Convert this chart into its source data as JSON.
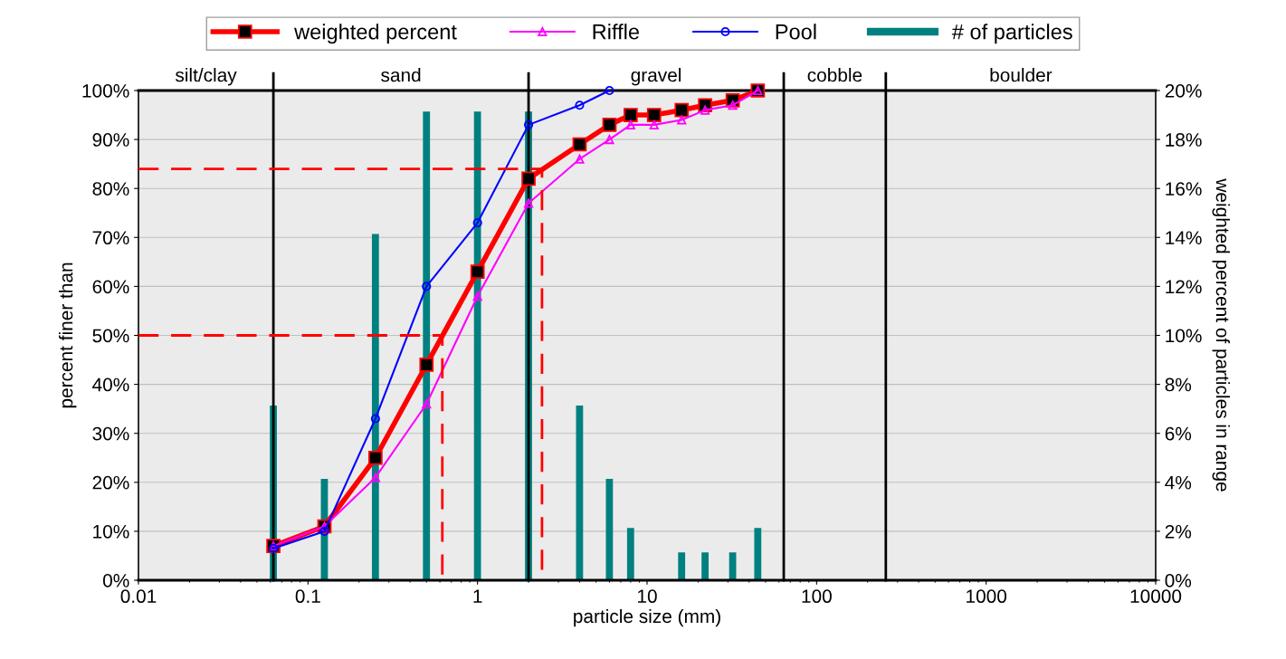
{
  "chart_data": {
    "type": "line",
    "xlabel": "particle size (mm)",
    "ylabel": "percent finer than",
    "y2label": "weighted percent of particles in range",
    "log": "x",
    "grid": true,
    "legend": "top",
    "xlim": [
      0.01,
      10000
    ],
    "xticks": [
      0.01,
      0.1,
      1,
      10,
      100,
      1000,
      10000
    ],
    "ylim": [
      0,
      100
    ],
    "yticks": [
      {
        "value": 0,
        "label": "0%"
      },
      {
        "value": 10,
        "label": "10%"
      },
      {
        "value": 20,
        "label": "20%"
      },
      {
        "value": 30,
        "label": "30%"
      },
      {
        "value": 40,
        "label": "40%"
      },
      {
        "value": 50,
        "label": "50%"
      },
      {
        "value": 60,
        "label": "60%"
      },
      {
        "value": 70,
        "label": "70%"
      },
      {
        "value": 80,
        "label": "80%"
      },
      {
        "value": 90,
        "label": "90%"
      },
      {
        "value": 100,
        "label": "100%"
      }
    ],
    "y2lim": [
      0,
      20
    ],
    "y2ticks": [
      {
        "value": 0,
        "label": "0%"
      },
      {
        "value": 2,
        "label": "2%"
      },
      {
        "value": 4,
        "label": "4%"
      },
      {
        "value": 6,
        "label": "6%"
      },
      {
        "value": 8,
        "label": "8%"
      },
      {
        "value": 10,
        "label": "10%"
      },
      {
        "value": 12,
        "label": "12%"
      },
      {
        "value": 14,
        "label": "14%"
      },
      {
        "value": 16,
        "label": "16%"
      },
      {
        "value": 18,
        "label": "18%"
      },
      {
        "value": 20,
        "label": "20%"
      }
    ],
    "series": [
      {
        "name": "weighted percent",
        "color": "#ff0000",
        "marker": "square",
        "x": [
          0.0625,
          0.125,
          0.25,
          0.5,
          1,
          2,
          4,
          6,
          8,
          11,
          16,
          22,
          32,
          45
        ],
        "values": [
          7,
          11,
          25,
          44,
          63,
          82,
          89,
          93,
          95,
          95,
          96,
          97,
          98,
          100
        ]
      },
      {
        "name": "Riffle",
        "color": "#ff00ff",
        "marker": "triangle",
        "x": [
          0.0625,
          0.125,
          0.25,
          0.5,
          1,
          2,
          4,
          6,
          8,
          11,
          16,
          22,
          32,
          45
        ],
        "values": [
          7,
          11,
          21,
          36,
          58,
          77,
          86,
          90,
          93,
          93,
          94,
          96,
          97,
          100
        ]
      },
      {
        "name": "Pool",
        "color": "#0000ff",
        "marker": "circle",
        "x": [
          0.0625,
          0.125,
          0.25,
          0.5,
          1,
          2,
          4,
          6
        ],
        "values": [
          6.5,
          10,
          33,
          60,
          73,
          93,
          97,
          100
        ]
      },
      {
        "name": "# of particles",
        "type": "bar",
        "axis": "y2",
        "color": "#008080",
        "x": [
          0.0625,
          0.125,
          0.25,
          0.5,
          1,
          2,
          4,
          6,
          8,
          11,
          16,
          22,
          32,
          45,
          64,
          90,
          128,
          180,
          256,
          362,
          512,
          1024,
          2048
        ],
        "values": [
          7.1,
          4.1,
          14.1,
          19.1,
          19.1,
          19.1,
          7.1,
          4.1,
          2.1,
          0,
          1.1,
          1.1,
          1.1,
          2.1,
          0,
          0,
          0,
          0,
          0,
          0,
          0,
          0,
          0
        ]
      },
      {
        "color": "#ff0000",
        "line_style": "dashed",
        "marker": "none",
        "x": [
          0.01,
          2.4,
          2.4
        ],
        "values": [
          84,
          84,
          0
        ]
      },
      {
        "color": "#ff0000",
        "line_style": "dashed",
        "marker": "none",
        "x": [
          0.01,
          0.62,
          0.62
        ],
        "values": [
          50,
          50,
          0
        ]
      }
    ],
    "ref_lines": [
      {
        "axis": "x",
        "value": 0.0625,
        "color": "#000000"
      },
      {
        "axis": "x",
        "value": 2,
        "color": "#000000"
      },
      {
        "axis": "x",
        "value": 64,
        "color": "#000000"
      },
      {
        "axis": "x",
        "value": 256,
        "color": "#000000"
      }
    ],
    "bands": [
      {
        "axis": "x",
        "from": 0.01,
        "to": 0.0625,
        "label": "silt/clay",
        "color": "#ebebeb"
      },
      {
        "axis": "x",
        "from": 0.0625,
        "to": 2,
        "label": "sand",
        "color": "#ebebeb"
      },
      {
        "axis": "x",
        "from": 2,
        "to": 64,
        "label": "gravel",
        "color": "#ebebeb"
      },
      {
        "axis": "x",
        "from": 64,
        "to": 256,
        "label": "cobble",
        "color": "#ebebeb"
      },
      {
        "axis": "x",
        "from": 256,
        "to": 10000,
        "label": "boulder",
        "color": "#ebebeb"
      }
    ]
  }
}
